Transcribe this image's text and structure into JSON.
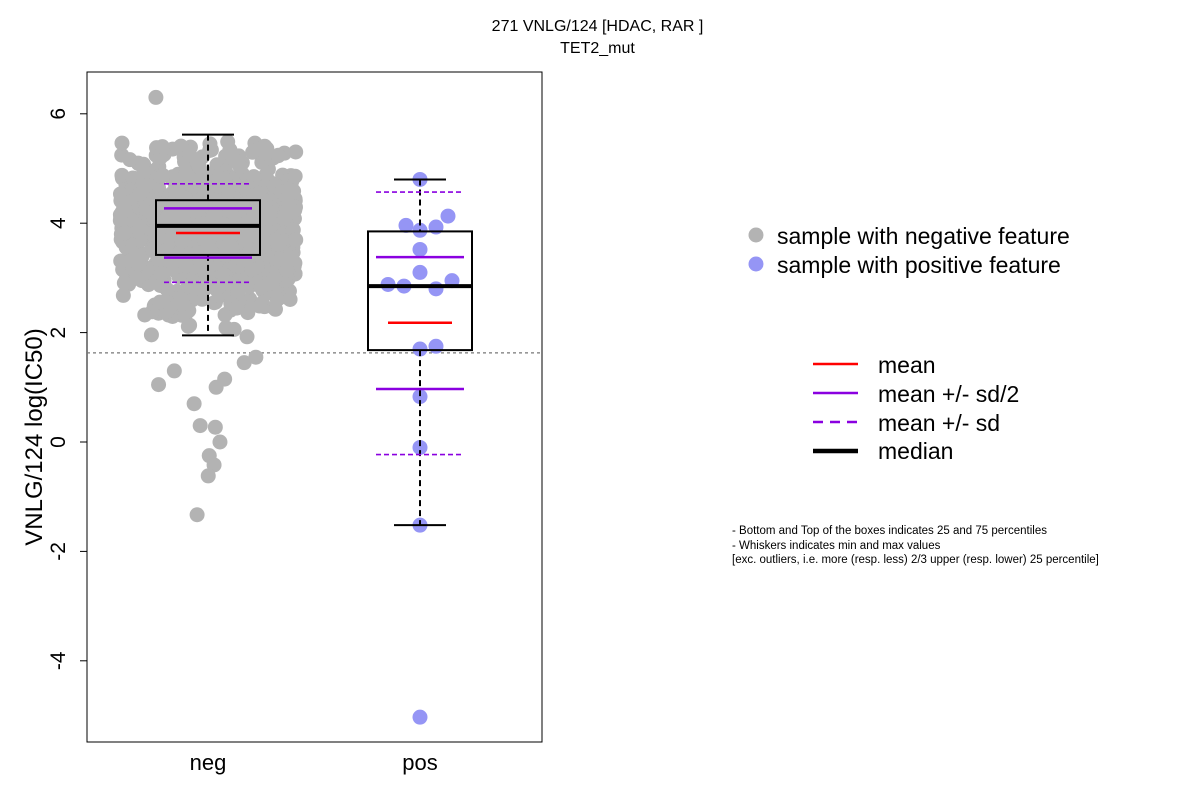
{
  "title_line1": "271 VNLG/124 [HDAC, RAR ]",
  "title_line2": "TET2_mut",
  "legend_points": [
    {
      "label": "sample with negative feature",
      "color": "#b3b3b3"
    },
    {
      "label": "sample with positive feature",
      "color": "#9595f5"
    }
  ],
  "legend_lines": [
    {
      "label": "mean",
      "color": "#ff0000",
      "style": "solid"
    },
    {
      "label": "mean +/- sd/2",
      "color": "#8a00e0",
      "style": "solid"
    },
    {
      "label": "mean +/- sd",
      "color": "#8a00e0",
      "style": "dashed"
    },
    {
      "label": "median",
      "color": "#000000",
      "style": "thick"
    }
  ],
  "notes": [
    "- Bottom and Top of the boxes indicates 25 and 75 percentiles",
    "- Whiskers indicates min and max values",
    "[exc. outliers, i.e. more (resp. less) 2/3 upper (resp. lower) 25 percentile]"
  ],
  "chart_data": {
    "type": "box",
    "ylabel": "VNLG/124 log(IC50)",
    "ylim": [
      -5.4,
      6.8
    ],
    "yticks": [
      -4,
      -2,
      0,
      2,
      4,
      6
    ],
    "categories": [
      "neg",
      "pos"
    ],
    "reference_line_y": 1.63,
    "groups": [
      {
        "name": "neg",
        "color": "#b3b3b3",
        "box": {
          "q1": 3.42,
          "median": 3.95,
          "q3": 4.42,
          "whisker_low": 1.95,
          "whisker_high": 5.62
        },
        "mean": 3.82,
        "mean_minus_half_sd": 3.37,
        "mean_plus_half_sd": 4.27,
        "mean_minus_sd": 2.92,
        "mean_plus_sd": 4.72,
        "n_approx": 900,
        "outliers": [
          6.3,
          1.55,
          1.45,
          1.3,
          1.15,
          1.05,
          1.0,
          0.7,
          0.3,
          0.27,
          0.0,
          -0.25,
          -0.42,
          -0.62,
          -1.33
        ]
      },
      {
        "name": "pos",
        "color": "#9595f5",
        "box": {
          "q1": 1.68,
          "median": 2.85,
          "q3": 3.85,
          "whisker_low": -1.52,
          "whisker_high": 4.8
        },
        "mean": 2.18,
        "mean_minus_half_sd": 0.97,
        "mean_plus_half_sd": 3.38,
        "mean_minus_sd": -0.23,
        "mean_plus_sd": 4.57,
        "points": [
          4.8,
          4.13,
          3.96,
          3.93,
          3.87,
          3.52,
          3.1,
          2.95,
          2.88,
          2.85,
          2.8,
          1.75,
          1.7,
          0.83,
          -0.1,
          -1.52,
          -5.03
        ]
      }
    ]
  }
}
